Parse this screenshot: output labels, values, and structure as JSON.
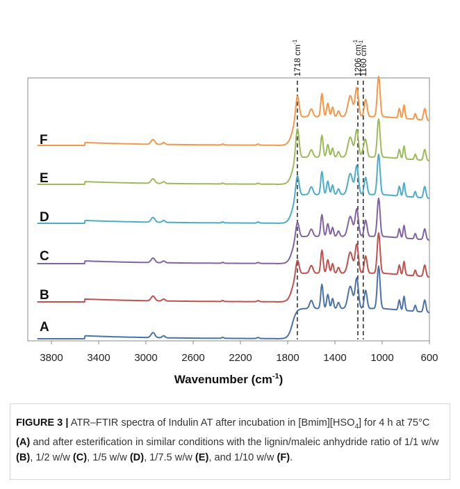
{
  "chart_data": {
    "type": "line",
    "xlabel": "Wavenumber (cm",
    "xlabel_sup": "-1",
    "xlabel_close": ")",
    "xlim": [
      4000,
      600
    ],
    "x_reversed": true,
    "x_ticks": [
      3800,
      3400,
      3000,
      2600,
      2200,
      1800,
      1400,
      1000,
      600
    ],
    "grid": false,
    "legend": "none",
    "series": [
      {
        "name": "A",
        "color": "#4a72a8"
      },
      {
        "name": "B",
        "color": "#c0504d"
      },
      {
        "name": "C",
        "color": "#8064a2"
      },
      {
        "name": "D",
        "color": "#4bacc6"
      },
      {
        "name": "E",
        "color": "#9bbb59"
      },
      {
        "name": "F",
        "color": "#f79646"
      }
    ],
    "reference_lines": [
      {
        "x": 1718,
        "label": "1718 cm",
        "sup": "-1"
      },
      {
        "x": 1206,
        "label": "1206 cm",
        "sup": "-1"
      },
      {
        "x": 1160,
        "label": "1160 cm",
        "sup": "-1"
      }
    ]
  },
  "caption": {
    "figure_label": "FIGURE 3 |",
    "text_1": " ATR–FTIR spectra of Indulin AT after incubation in [Bmim][HSO",
    "sub_1": "4",
    "text_2": "] for 4 h at 75°C ",
    "ref_a": "(A)",
    "text_3": " and after esterification in similar conditions with the lignin/maleic anhydride ratio of 1/1 w/w ",
    "ref_b": "(B)",
    "text_4": ", 1/2 w/w ",
    "ref_c": "(C)",
    "text_5": ", 1/5 w/w ",
    "ref_d": "(D)",
    "text_6": ", 1/7.5 w/w ",
    "ref_e": "(E)",
    "text_7": ", and 1/10 w/w ",
    "ref_f": "(F)",
    "text_8": "."
  }
}
